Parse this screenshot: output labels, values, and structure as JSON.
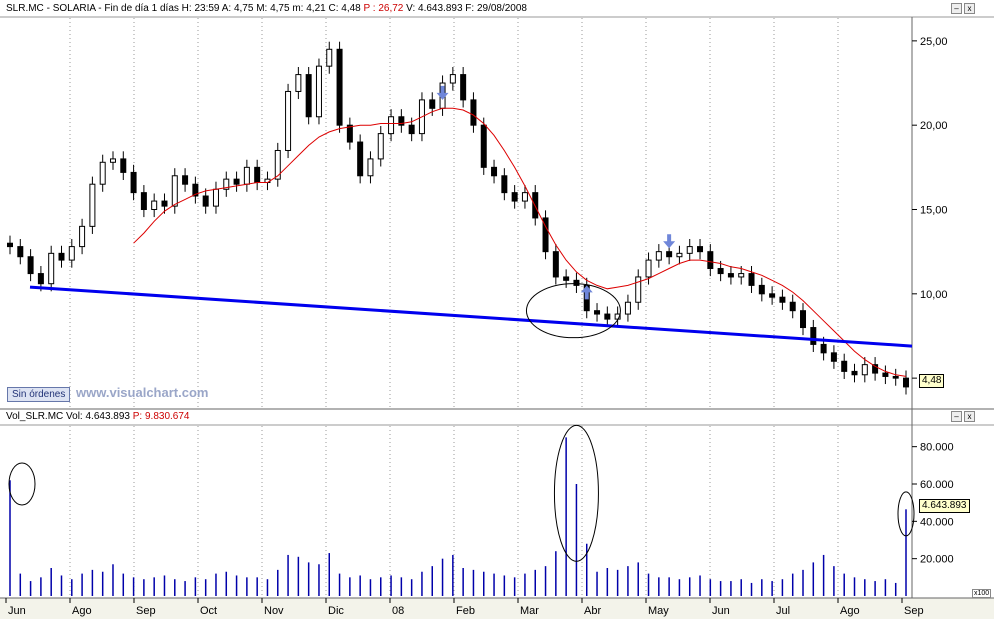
{
  "price_header": {
    "ticker": "SLR.MC",
    "name": "SOLARIA",
    "period": "Fin de día 1 días",
    "time_label": "H: 23:59",
    "open_label": "A: 4,75",
    "high_label": "M: 4,75",
    "low_label": "m: 4,21",
    "close_label": "C: 4,48",
    "p_label": "P : 26,72",
    "vol_label": "V: 4.643.893",
    "date_label": "F: 29/08/2008"
  },
  "volume_header": {
    "title": "Vol_SLR.MC",
    "vol_label": "Vol: 4.643.893",
    "p_label": "P: 9.830.674"
  },
  "ui": {
    "sin_ordenes": "Sin órdenes",
    "watermark": "www.visualchart.com",
    "price_current": "4,48",
    "volume_current": "4.643.893",
    "volume_scale": "x100",
    "btn_a": "–",
    "btn_b": "x"
  },
  "colors": {
    "candle": "#000000",
    "moving_average": "#dd0000",
    "trendline": "#0000ee",
    "volume_bar": "#0000aa",
    "arrow": "#6f86d9",
    "header_red": "#cc0000"
  },
  "chart_data": [
    {
      "type": "candlestick",
      "ylim": [
        4,
        26
      ],
      "yticks": [
        "25,00",
        "20,00",
        "15,00",
        "10,00",
        "5,00"
      ],
      "yticks_values": [
        25,
        20,
        15,
        10,
        5
      ],
      "x_labels": [
        "Jun",
        "Ago",
        "Sep",
        "Oct",
        "Nov",
        "Dic",
        "08",
        "Feb",
        "Mar",
        "Abr",
        "May",
        "Jun",
        "Jul",
        "Ago",
        "Sep"
      ],
      "series": [
        {
          "name": "SLR.MC",
          "close": [
            12.8,
            12.2,
            11.2,
            10.6,
            12.4,
            12.0,
            12.8,
            14.0,
            16.5,
            17.8,
            18.0,
            17.2,
            16.0,
            15.0,
            15.5,
            15.2,
            17.0,
            16.5,
            15.8,
            15.2,
            16.2,
            16.8,
            16.5,
            17.5,
            16.6,
            16.8,
            18.5,
            22.0,
            23.0,
            20.5,
            23.5,
            24.5,
            20.0,
            19.0,
            17.0,
            18.0,
            19.5,
            20.5,
            20.0,
            19.5,
            21.5,
            21.0,
            22.5,
            23.0,
            21.5,
            20.0,
            17.5,
            17.0,
            16.0,
            15.5,
            16.0,
            14.5,
            12.5,
            11.0,
            10.8,
            10.5,
            9.0,
            8.8,
            8.5,
            8.8,
            9.5,
            11.0,
            12.0,
            12.5,
            12.2,
            12.4,
            12.8,
            12.5,
            11.5,
            11.2,
            11.0,
            11.2,
            10.5,
            10.0,
            9.8,
            9.5,
            9.0,
            8.0,
            7.0,
            6.5,
            6.0,
            5.4,
            5.2,
            5.8,
            5.3,
            5.1,
            5.0,
            4.48
          ],
          "ma": [
            null,
            null,
            null,
            null,
            null,
            null,
            null,
            null,
            null,
            null,
            null,
            null,
            13.0,
            13.6,
            14.3,
            14.9,
            15.3,
            15.6,
            15.9,
            16.1,
            16.2,
            16.3,
            16.4,
            16.5,
            16.6,
            16.6,
            17.0,
            17.6,
            18.2,
            18.8,
            19.3,
            19.6,
            19.8,
            19.9,
            20.0,
            20.0,
            20.1,
            20.1,
            20.1,
            20.2,
            20.5,
            20.8,
            21.0,
            21.0,
            20.9,
            20.6,
            20.1,
            19.4,
            18.5,
            17.5,
            16.4,
            15.2,
            14.0,
            12.9,
            12.0,
            11.3,
            10.8,
            10.5,
            10.3,
            10.4,
            10.5,
            10.7,
            10.9,
            11.2,
            11.5,
            11.8,
            12.0,
            12.0,
            11.9,
            11.8,
            11.6,
            11.5,
            11.3,
            11.1,
            10.8,
            10.5,
            10.1,
            9.6,
            9.0,
            8.4,
            7.8,
            7.2,
            6.6,
            6.1,
            5.7,
            5.4,
            5.2,
            5.1
          ]
        }
      ],
      "trendline": {
        "x": [
          0,
          87
        ],
        "y": [
          10.4,
          6.9
        ]
      },
      "ellipse_center": {
        "x": 55,
        "y": 9.0
      },
      "arrows": [
        {
          "x": 42,
          "y": 21.5,
          "direction": "down"
        },
        {
          "x": 56,
          "y": 10.5,
          "direction": "up"
        },
        {
          "x": 64,
          "y": 12.7,
          "direction": "down"
        }
      ]
    },
    {
      "type": "bar",
      "ylim": [
        0,
        90000
      ],
      "yticks": [
        "80.000",
        "60.000",
        "40.000",
        "20.000"
      ],
      "yticks_values": [
        80000,
        60000,
        40000,
        20000
      ],
      "series": [
        {
          "name": "Vol_SLR.MC",
          "values": [
            62000,
            12000,
            8000,
            10000,
            15000,
            11000,
            9000,
            12000,
            14000,
            13000,
            17000,
            12000,
            10000,
            9000,
            10000,
            11000,
            9000,
            8000,
            10000,
            9000,
            12000,
            13000,
            11000,
            10000,
            10000,
            9000,
            14000,
            22000,
            21000,
            18000,
            17000,
            23000,
            12000,
            10000,
            11000,
            9000,
            10000,
            11000,
            10000,
            9000,
            13000,
            16000,
            20000,
            22000,
            15000,
            14000,
            13000,
            12000,
            11000,
            10000,
            12000,
            14000,
            16000,
            24000,
            85000,
            60000,
            28000,
            13000,
            15000,
            14000,
            16000,
            18000,
            12000,
            10000,
            10000,
            9000,
            10000,
            11000,
            9000,
            8000,
            8000,
            9000,
            7000,
            9000,
            8000,
            9000,
            12000,
            14000,
            18000,
            22000,
            16000,
            12000,
            10000,
            9000,
            8000,
            9000,
            7000,
            46438
          ]
        }
      ],
      "ellipse_centers": [
        {
          "x": 0,
          "y": 60000
        },
        {
          "x": 55,
          "y": 55000
        },
        {
          "x": 87,
          "y": 44000
        }
      ]
    }
  ]
}
